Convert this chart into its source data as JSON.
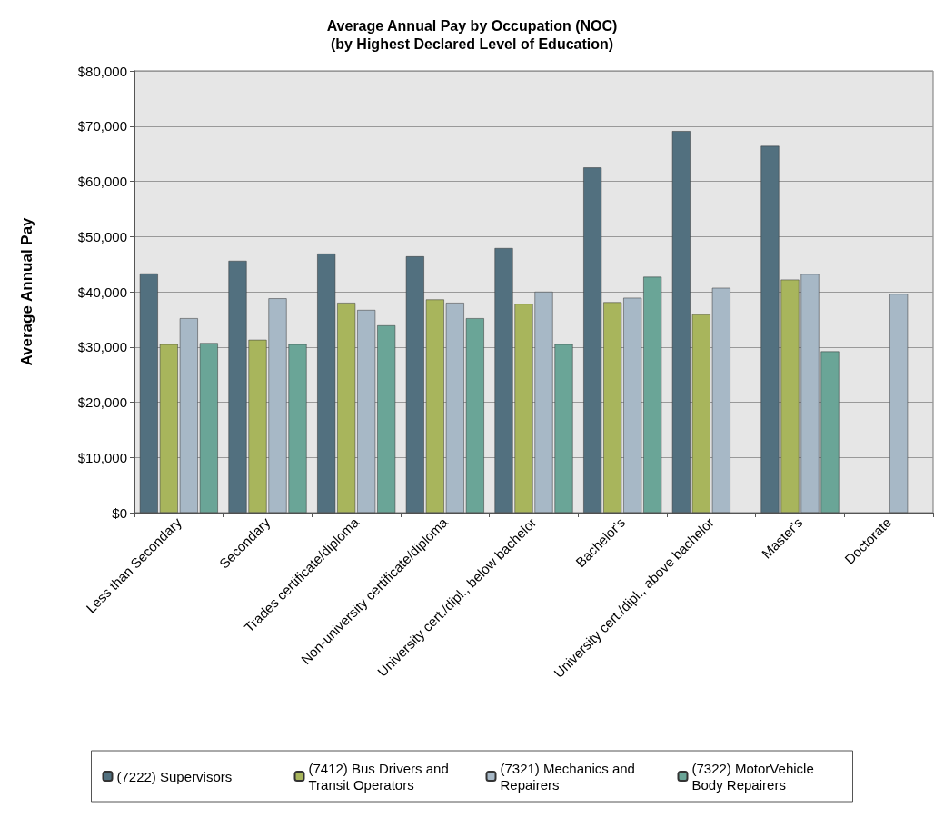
{
  "chart_data": {
    "type": "bar",
    "title": "Average Annual Pay by Occupation (NOC)\n(by Highest Declared Level of Education)",
    "ylabel": "Average Annual Pay",
    "categories": [
      "Less than Secondary",
      "Secondary",
      "Trades certificate/diploma",
      "Non-university certificate/diploma",
      "University cert./dipl., below bachelor",
      "Bachelor's",
      "University cert./dipl., above bachelor",
      "Master's",
      "Doctorate"
    ],
    "series": [
      {
        "name": "(7222) Supervisors",
        "color": "#52707f",
        "values": [
          43300,
          45600,
          46900,
          46400,
          47900,
          62500,
          69100,
          66400,
          null
        ]
      },
      {
        "name": "(7412) Bus Drivers and Transit Operators",
        "color": "#a8b55c",
        "values": [
          30500,
          31300,
          38000,
          38600,
          37800,
          38100,
          35900,
          42200,
          null
        ]
      },
      {
        "name": "(7321) Mechanics and Repairers",
        "color": "#a7b8c6",
        "values": [
          35200,
          38800,
          36700,
          38000,
          40000,
          38900,
          40700,
          43200,
          39600
        ]
      },
      {
        "name": "(7322) MotorVehicle Body Repairers",
        "color": "#6aa597",
        "values": [
          30700,
          30500,
          33900,
          35200,
          30500,
          42700,
          null,
          29200,
          null
        ]
      }
    ],
    "ylim": [
      0,
      80000
    ],
    "yticks": [
      {
        "value": 0,
        "label": "$0"
      },
      {
        "value": 10000,
        "label": "$10,000"
      },
      {
        "value": 20000,
        "label": "$20,000"
      },
      {
        "value": 30000,
        "label": "$30,000"
      },
      {
        "value": 40000,
        "label": "$40,000"
      },
      {
        "value": 50000,
        "label": "$50,000"
      },
      {
        "value": 60000,
        "label": "$60,000"
      },
      {
        "value": 70000,
        "label": "$70,000"
      },
      {
        "value": 80000,
        "label": "$80,000"
      }
    ],
    "grid": "y",
    "legend": "bottom"
  }
}
